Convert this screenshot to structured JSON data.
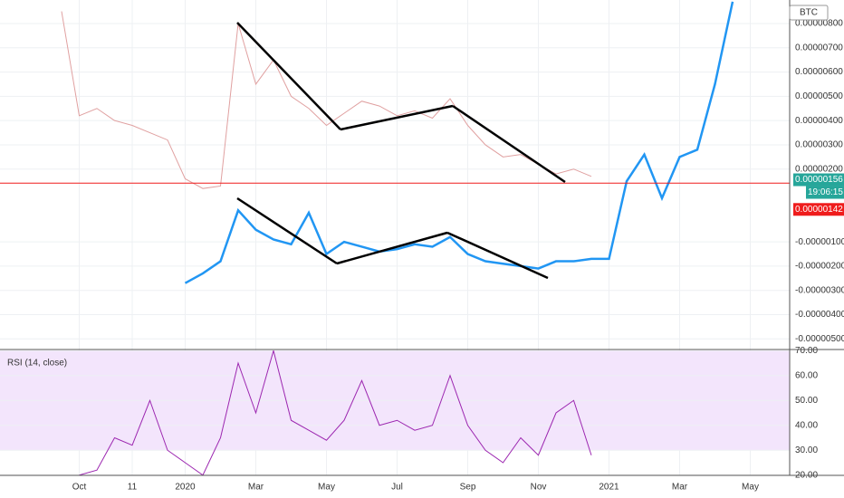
{
  "chart_data": [
    {
      "type": "line",
      "currency": "BTC",
      "categories": [
        null,
        "Oct",
        null,
        null,
        "11",
        null,
        null,
        "2020",
        null,
        null,
        null,
        "Mar",
        null,
        null,
        null,
        "May",
        null,
        null,
        null,
        "Jul",
        null,
        null,
        null,
        "Sep",
        null,
        null,
        null,
        "Nov",
        null,
        null,
        null,
        "2021",
        null,
        null,
        null,
        "Mar",
        null,
        null,
        null,
        "May"
      ],
      "series": [
        {
          "color": "#e0a0a0",
          "values": [
            8.5e-06,
            4.2e-06,
            4.5e-06,
            4e-06,
            3.8e-06,
            3.5e-06,
            3.2e-06,
            1.6e-06,
            1.2e-06,
            1.3e-06,
            8e-06,
            5.5e-06,
            6.5e-06,
            5e-06,
            4.5e-06,
            3.8e-06,
            4.3e-06,
            4.8e-06,
            4.6e-06,
            4.2e-06,
            4.4e-06,
            4.1e-06,
            4.9e-06,
            3.8e-06,
            3e-06,
            2.5e-06,
            2.6e-06,
            2.2e-06,
            1.8e-06,
            2e-06,
            1.7e-06,
            null,
            null,
            null,
            null,
            null,
            null,
            null,
            null,
            null
          ]
        },
        {
          "color": "#2196f3",
          "values": [
            null,
            null,
            null,
            null,
            null,
            null,
            null,
            -2.7e-06,
            -2.3e-06,
            -1.8e-06,
            3e-07,
            -5e-07,
            -9e-07,
            -1.1e-06,
            2e-07,
            -1.5e-06,
            -1e-06,
            -1.2e-06,
            -1.4e-06,
            -1.3e-06,
            -1.1e-06,
            -1.2e-06,
            -8e-07,
            -1.5e-06,
            -1.8e-06,
            -1.9e-06,
            -2e-06,
            -2.1e-06,
            -1.8e-06,
            -1.8e-06,
            -1.7e-06,
            -1.7e-06,
            1.5e-06,
            2.6e-06,
            8e-07,
            2.5e-06,
            2.8e-06,
            5.5e-06,
            8.9e-06,
            null
          ]
        }
      ],
      "ylim": [
        -5.4e-06,
        8.97e-06
      ],
      "yticks": [
        {
          "value": 8e-06,
          "label": "0.00000800"
        },
        {
          "value": 7e-06,
          "label": "0.00000700"
        },
        {
          "value": 6e-06,
          "label": "0.00000600"
        },
        {
          "value": 5e-06,
          "label": "0.00000500"
        },
        {
          "value": 4e-06,
          "label": "0.00000400"
        },
        {
          "value": 3e-06,
          "label": "0.00000300"
        },
        {
          "value": 2e-06,
          "label": "0.00000200"
        },
        {
          "value": -1e-06,
          "label": "-0.00000100"
        },
        {
          "value": -2e-06,
          "label": "-0.00000200"
        },
        {
          "value": -3e-06,
          "label": "-0.00000300"
        },
        {
          "value": -4e-06,
          "label": "-0.00000400"
        },
        {
          "value": -5e-06,
          "label": "-0.00000500"
        }
      ],
      "price_badges": [
        {
          "value": 1.56e-06,
          "label": "0.00000156",
          "color": "#26a69a"
        },
        {
          "value": 1.42e-06,
          "label": "0.00000142",
          "color": "#ef1c1c"
        }
      ],
      "countdown": "19:06:15",
      "grid": true
    },
    {
      "type": "line",
      "title": "RSI (14, close)",
      "series": [
        {
          "color": "#9c27b0",
          "values": [
            null,
            20,
            22,
            35,
            32,
            50,
            30,
            25,
            20,
            35,
            65,
            45,
            70,
            42,
            38,
            34,
            42,
            58,
            40,
            42,
            38,
            40,
            60,
            40,
            30,
            25,
            35,
            28,
            45,
            50,
            28,
            null,
            null,
            null,
            null,
            null,
            null,
            null,
            null,
            null
          ]
        }
      ],
      "ylim": [
        19.9,
        70.1
      ],
      "band": [
        30,
        70
      ],
      "yticks": [
        {
          "value": 70,
          "label": "70.00"
        },
        {
          "value": 60,
          "label": "60.00"
        },
        {
          "value": 50,
          "label": "50.00"
        },
        {
          "value": 40,
          "label": "40.00"
        },
        {
          "value": 30,
          "label": "30.00"
        },
        {
          "value": 20,
          "label": "20.00"
        }
      ],
      "grid": true
    }
  ]
}
